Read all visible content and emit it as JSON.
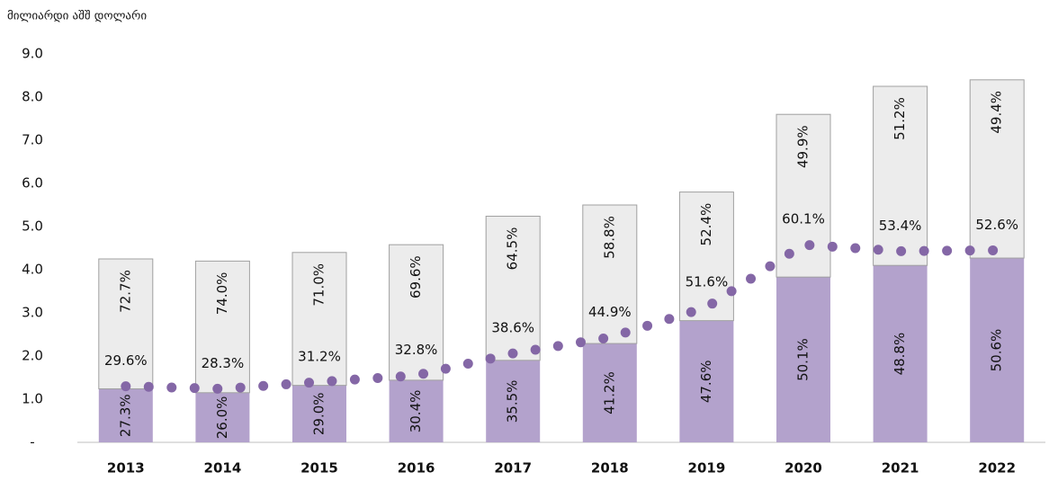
{
  "chart_data": {
    "type": "stacked_bar_line",
    "y_axis_label": "მილიარდი აშშ დოლარი",
    "categories": [
      "2013",
      "2014",
      "2015",
      "2016",
      "2017",
      "2018",
      "2019",
      "2020",
      "2021",
      "2022"
    ],
    "series": [
      {
        "kind": "bar",
        "color": "#b3a2cc",
        "values": [
          1.24,
          1.15,
          1.32,
          1.44,
          1.9,
          2.29,
          2.82,
          3.83,
          4.1,
          4.27
        ],
        "labels": [
          "27.3%",
          "26.0%",
          "29.0%",
          "30.4%",
          "35.5%",
          "41.2%",
          "47.6%",
          "50.1%",
          "48.8%",
          "50.6%"
        ]
      },
      {
        "kind": "bar",
        "color": "#ececec",
        "values": [
          3.01,
          3.05,
          3.08,
          3.14,
          3.34,
          3.21,
          2.98,
          3.77,
          4.15,
          4.13
        ],
        "labels": [
          "72.7%",
          "74.0%",
          "71.0%",
          "69.6%",
          "64.5%",
          "58.8%",
          "52.4%",
          "49.9%",
          "51.2%",
          "49.4%"
        ]
      },
      {
        "kind": "line",
        "color": "#8467a6",
        "values": [
          1.3,
          1.24,
          1.4,
          1.55,
          2.06,
          2.43,
          3.13,
          4.58,
          4.43,
          4.45
        ],
        "labels": [
          "29.6%",
          "28.3%",
          "31.2%",
          "32.8%",
          "38.6%",
          "44.9%",
          "51.6%",
          "60.1%",
          "53.4%",
          "52.6%"
        ]
      }
    ],
    "ylim": [
      0,
      9
    ],
    "yticks": [
      {
        "value": 0,
        "label": "-"
      },
      {
        "value": 1,
        "label": "1.0"
      },
      {
        "value": 2,
        "label": "2.0"
      },
      {
        "value": 3,
        "label": "3.0"
      },
      {
        "value": 4,
        "label": "4.0"
      },
      {
        "value": 5,
        "label": "5.0"
      },
      {
        "value": 6,
        "label": "6.0"
      },
      {
        "value": 7,
        "label": "7.0"
      },
      {
        "value": 8,
        "label": "8.0"
      },
      {
        "value": 9,
        "label": "9.0"
      }
    ]
  }
}
